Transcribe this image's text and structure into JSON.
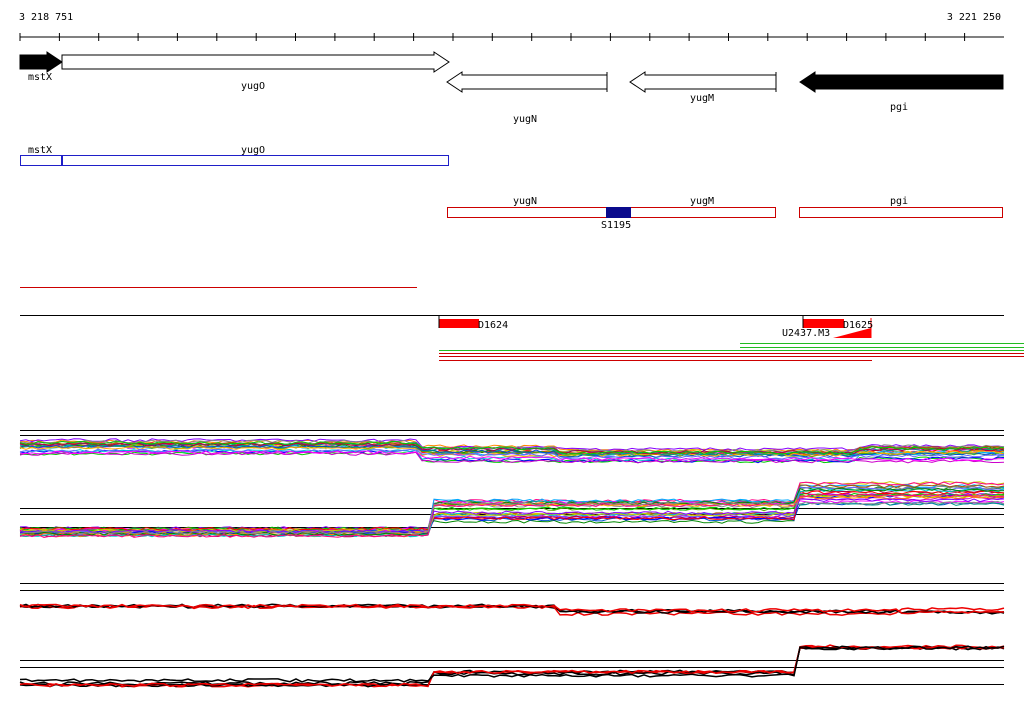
{
  "ruler": {
    "start_label": "3 218 751",
    "end_label": "3 221 250",
    "start_coord": 3218751,
    "end_coord": 3221250
  },
  "genes": [
    {
      "name": "mstX",
      "strand": "+",
      "filled": true
    },
    {
      "name": "yugO",
      "strand": "+",
      "filled": false
    },
    {
      "name": "yugN",
      "strand": "-",
      "filled": false
    },
    {
      "name": "yugM",
      "strand": "-",
      "filled": false
    },
    {
      "name": "pgi",
      "strand": "-",
      "filled": true
    }
  ],
  "transcription_units": [
    {
      "genes": [
        "mstX",
        "yugO"
      ],
      "color": "#1f1fc8"
    },
    {
      "genes": [
        "yugN",
        "yugM"
      ],
      "color": "#cc0000",
      "site": "S1195",
      "site_color": "#0a0a8c"
    },
    {
      "genes": [
        "pgi"
      ],
      "color": "#cc0000"
    }
  ],
  "features": [
    {
      "label": "D1624",
      "color": "#ff0000"
    },
    {
      "label": "D1625",
      "color": "#ff0000"
    },
    {
      "label": "U2437.M3",
      "color": "#ff0000"
    }
  ],
  "colors": {
    "forward_gene": "#000000",
    "tu_forward": "#1f1fc8",
    "tu_reverse": "#cc0000",
    "feature": "#ff0000",
    "read_green": "#22bb22",
    "read_red": "#cc0000",
    "profile_summary_a": "#000000",
    "profile_summary_b": "#ee0000"
  }
}
